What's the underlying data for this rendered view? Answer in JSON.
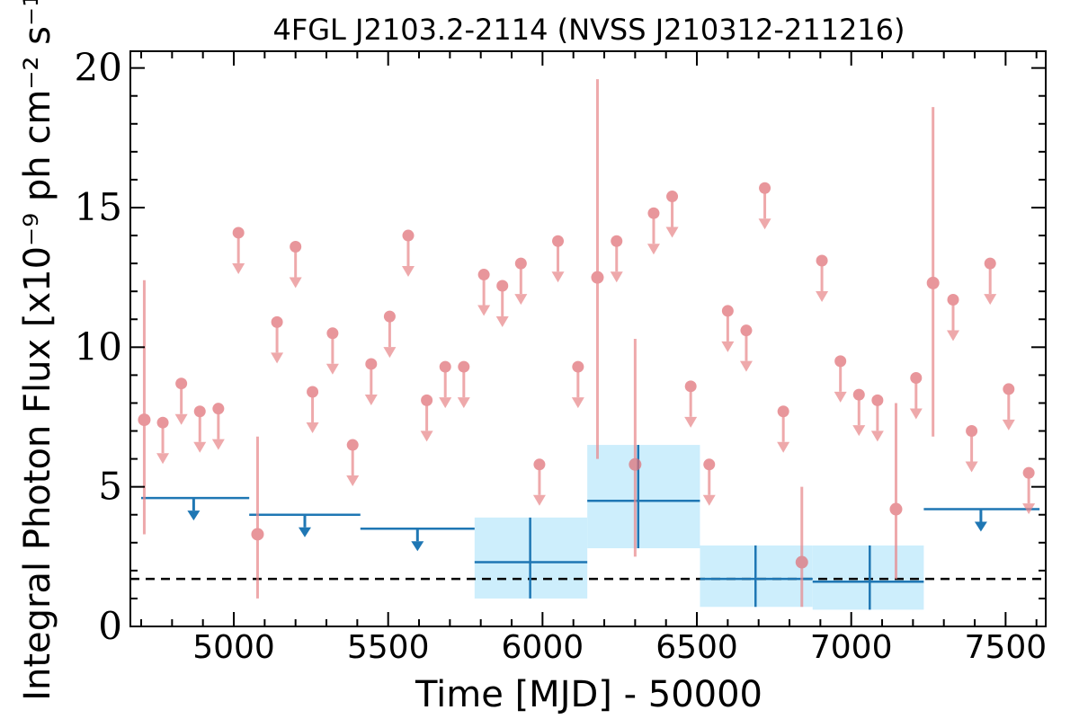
{
  "chart_data": {
    "type": "scatter",
    "title": "4FGL J2103.2-2114 (NVSS J210312-211216)",
    "xlabel": "Time [MJD] - 50000",
    "ylabel": "Integral Photon Flux [x10⁻⁹ ph cm⁻² s⁻¹]",
    "xlim": [
      4665,
      7630
    ],
    "ylim": [
      0,
      20.6
    ],
    "xticks": [
      5000,
      5500,
      6000,
      6500,
      7000,
      7500
    ],
    "xtick_labels": [
      "5000",
      "5500",
      "6000",
      "6500",
      "7000",
      "7500"
    ],
    "yticks": [
      0,
      5,
      10,
      15,
      20
    ],
    "ytick_labels": [
      "0",
      "5",
      "10",
      "15",
      "20"
    ],
    "grid": false,
    "reference_line": {
      "style": "dashed",
      "color": "#000000",
      "y": 1.7
    },
    "colors": {
      "short_bins": "#e8888c",
      "long_bins": "#1f77b4",
      "band": "#cdeefc"
    },
    "short_bins": {
      "detections": [
        {
          "x": 4710,
          "y": 7.4,
          "ylow": 3.3,
          "yhigh": 12.4
        },
        {
          "x": 5077,
          "y": 3.3,
          "ylow": 1.0,
          "yhigh": 6.8
        },
        {
          "x": 6178,
          "y": 12.5,
          "ylow": 6.0,
          "yhigh": 19.6
        },
        {
          "x": 6300,
          "y": 5.8,
          "ylow": 2.5,
          "yhigh": 10.3
        },
        {
          "x": 6840,
          "y": 2.3,
          "ylow": 0.7,
          "yhigh": 5.0
        },
        {
          "x": 7145,
          "y": 4.2,
          "ylow": 1.7,
          "yhigh": 8.0
        },
        {
          "x": 7265,
          "y": 12.3,
          "ylow": 6.8,
          "yhigh": 18.6
        }
      ],
      "upper_limits": [
        {
          "x": 4770,
          "y": 7.3
        },
        {
          "x": 4830,
          "y": 8.7
        },
        {
          "x": 4890,
          "y": 7.7
        },
        {
          "x": 4950,
          "y": 7.8
        },
        {
          "x": 5015,
          "y": 14.1
        },
        {
          "x": 5140,
          "y": 10.9
        },
        {
          "x": 5200,
          "y": 13.6
        },
        {
          "x": 5255,
          "y": 8.4
        },
        {
          "x": 5320,
          "y": 10.5
        },
        {
          "x": 5385,
          "y": 6.5
        },
        {
          "x": 5445,
          "y": 9.4
        },
        {
          "x": 5505,
          "y": 11.1
        },
        {
          "x": 5565,
          "y": 14.0
        },
        {
          "x": 5625,
          "y": 8.1
        },
        {
          "x": 5685,
          "y": 9.3
        },
        {
          "x": 5745,
          "y": 9.3
        },
        {
          "x": 5810,
          "y": 12.6
        },
        {
          "x": 5870,
          "y": 12.2
        },
        {
          "x": 5930,
          "y": 13.0
        },
        {
          "x": 5990,
          "y": 5.8
        },
        {
          "x": 6050,
          "y": 13.8
        },
        {
          "x": 6115,
          "y": 9.3
        },
        {
          "x": 6240,
          "y": 13.8
        },
        {
          "x": 6360,
          "y": 14.8
        },
        {
          "x": 6420,
          "y": 15.4
        },
        {
          "x": 6480,
          "y": 8.6
        },
        {
          "x": 6540,
          "y": 5.8
        },
        {
          "x": 6600,
          "y": 11.3
        },
        {
          "x": 6660,
          "y": 10.6
        },
        {
          "x": 6720,
          "y": 15.7
        },
        {
          "x": 6780,
          "y": 7.7
        },
        {
          "x": 6905,
          "y": 13.1
        },
        {
          "x": 6965,
          "y": 9.5
        },
        {
          "x": 7025,
          "y": 8.3
        },
        {
          "x": 7085,
          "y": 8.1
        },
        {
          "x": 7210,
          "y": 8.9
        },
        {
          "x": 7330,
          "y": 11.7
        },
        {
          "x": 7390,
          "y": 7.0
        },
        {
          "x": 7450,
          "y": 13.0
        },
        {
          "x": 7510,
          "y": 8.5
        },
        {
          "x": 7575,
          "y": 5.5
        }
      ]
    },
    "long_bins": {
      "detections": [
        {
          "x0": 5780,
          "x1": 6145,
          "xc": 5960,
          "y": 2.3,
          "ylow": 1.0,
          "yhigh": 3.9
        },
        {
          "x0": 6145,
          "x1": 6510,
          "xc": 6310,
          "y": 4.5,
          "ylow": 2.8,
          "yhigh": 6.5
        },
        {
          "x0": 6510,
          "x1": 6875,
          "xc": 6690,
          "y": 1.7,
          "ylow": 0.7,
          "yhigh": 2.9
        },
        {
          "x0": 6875,
          "x1": 7235,
          "xc": 7060,
          "y": 1.6,
          "ylow": 0.6,
          "yhigh": 2.9
        }
      ],
      "upper_limits": [
        {
          "x0": 4700,
          "x1": 5050,
          "xc": 4870,
          "y": 4.6
        },
        {
          "x0": 5050,
          "x1": 5410,
          "xc": 5230,
          "y": 4.0
        },
        {
          "x0": 5410,
          "x1": 5780,
          "xc": 5595,
          "y": 3.5
        },
        {
          "x0": 7235,
          "x1": 7610,
          "xc": 7420,
          "y": 4.2
        }
      ]
    }
  }
}
